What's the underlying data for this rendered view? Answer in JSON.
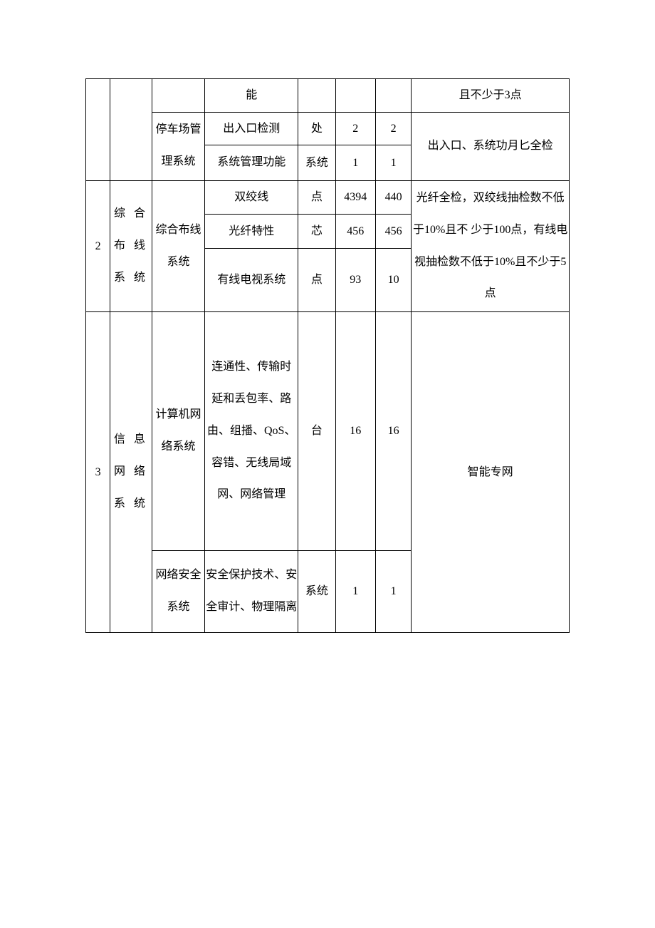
{
  "table": {
    "row1": {
      "c3": "能",
      "c7": "且不少于3点"
    },
    "row2": {
      "c2": "停车场管理系统",
      "c3": "出入口检测",
      "c4": "处",
      "c5": "2",
      "c6": "2",
      "c7": "出入口、系统功月匕全检"
    },
    "row3": {
      "c3": "系统管理功能",
      "c4": "系统",
      "c5": "1",
      "c6": "1"
    },
    "sec2": {
      "c0": "2",
      "c1": "综 合布 线系 统",
      "c2": "综合布线系统",
      "r1": {
        "c3": "双绞线",
        "c4": "点",
        "c5": "4394",
        "c6": "440"
      },
      "r2": {
        "c3": "光纤特性",
        "c4": "芯",
        "c5": "456",
        "c6": "456"
      },
      "r3": {
        "c3": "有线电视系统",
        "c4": "点",
        "c5": "93",
        "c6": "10"
      },
      "c7": "光纤全检，双绞线抽检数不低于10%且不 少于100点，有线电 视抽检数不低于10%且不少于5点"
    },
    "sec3": {
      "c0": "3",
      "c1": "信 息网 络系 统",
      "r1": {
        "c2": "计算机网络系统",
        "c3": "连通性、传输时延和丢包率、路由、组播、QoS、容错、无线局域网、网络管理",
        "c4": "台",
        "c5": "16",
        "c6": "16"
      },
      "r2": {
        "c2": "网络安全系统",
        "c3": "安全保护技术、安全审计、物理隔离",
        "c4": "系统",
        "c5": "1",
        "c6": "1"
      },
      "c7": "智能专网"
    }
  }
}
